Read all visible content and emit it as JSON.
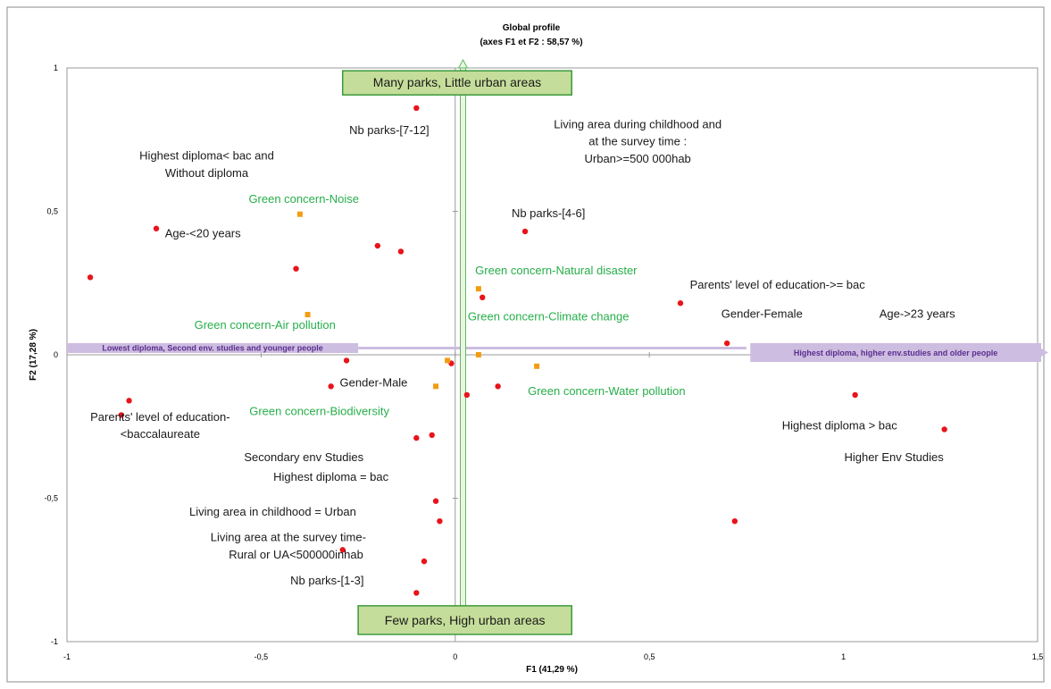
{
  "chart_data": {
    "type": "scatter",
    "title": "Global profile",
    "subtitle": "(axes F1 et F2 : 58,57 %)",
    "xlabel": "F1 (41,29 %)",
    "ylabel": "F2 (17,28 %)",
    "xlim": [
      -1,
      1.5
    ],
    "ylim": [
      -1,
      1
    ],
    "x_ticks": [
      -1,
      -0.5,
      0,
      0.5,
      1,
      1.5
    ],
    "x_tick_labels": [
      "-1",
      "-0,5",
      "0",
      "0,5",
      "1",
      "1,5"
    ],
    "y_ticks": [
      -1,
      -0.5,
      0,
      0.5,
      1
    ],
    "y_tick_labels": [
      "-1",
      "-0,5",
      "0",
      "0,5",
      "1"
    ],
    "grid": false,
    "colors": {
      "red_points": "#e8141b",
      "orange_points": "#f39c12",
      "green_text": "#27ae4a",
      "purple_band": "#cdbde0",
      "purple_text": "#5b2d8e",
      "green_box": "#c5dd9a",
      "green_box_border": "#3c9a3c"
    },
    "series": [
      {
        "marker": "circle",
        "color": "#e8141b",
        "points": [
          {
            "x": -0.1,
            "y": 0.86
          },
          {
            "x": -0.77,
            "y": 0.44
          },
          {
            "x": -0.94,
            "y": 0.27
          },
          {
            "x": -0.41,
            "y": 0.3
          },
          {
            "x": -0.2,
            "y": 0.38
          },
          {
            "x": -0.14,
            "y": 0.36
          },
          {
            "x": 0.18,
            "y": 0.43
          },
          {
            "x": 0.07,
            "y": 0.2
          },
          {
            "x": 0.58,
            "y": 0.18
          },
          {
            "x": 0.7,
            "y": 0.04
          },
          {
            "x": -0.28,
            "y": -0.02
          },
          {
            "x": -0.32,
            "y": -0.11
          },
          {
            "x": -0.84,
            "y": -0.16
          },
          {
            "x": -0.86,
            "y": -0.21
          },
          {
            "x": -0.01,
            "y": -0.03
          },
          {
            "x": 0.03,
            "y": -0.14
          },
          {
            "x": 0.11,
            "y": -0.11
          },
          {
            "x": -0.1,
            "y": -0.29
          },
          {
            "x": -0.06,
            "y": -0.28
          },
          {
            "x": -0.05,
            "y": -0.51
          },
          {
            "x": -0.04,
            "y": -0.58
          },
          {
            "x": -0.29,
            "y": -0.68
          },
          {
            "x": -0.08,
            "y": -0.72
          },
          {
            "x": -0.1,
            "y": -0.83
          },
          {
            "x": 1.03,
            "y": -0.14
          },
          {
            "x": 1.26,
            "y": -0.26
          },
          {
            "x": 0.72,
            "y": -0.58
          }
        ]
      },
      {
        "marker": "square",
        "color": "#f39c12",
        "points": [
          {
            "x": -0.4,
            "y": 0.49
          },
          {
            "x": -0.38,
            "y": 0.14
          },
          {
            "x": 0.06,
            "y": 0.23
          },
          {
            "x": 0.06,
            "y": 0.0
          },
          {
            "x": -0.02,
            "y": -0.02
          },
          {
            "x": -0.05,
            "y": -0.11
          },
          {
            "x": 0.21,
            "y": -0.04
          }
        ]
      }
    ],
    "annotations": [
      {
        "text": "Nb parks-[7-12]",
        "x": -0.17,
        "y": 0.77,
        "color": "black"
      },
      {
        "text": "Highest diploma< bac and",
        "x": -0.64,
        "y": 0.68,
        "color": "black"
      },
      {
        "text": "Without diploma",
        "x": -0.64,
        "y": 0.62,
        "color": "black"
      },
      {
        "text": "Living area during childhood and",
        "x": 0.47,
        "y": 0.79,
        "color": "black"
      },
      {
        "text": "at the survey time :",
        "x": 0.47,
        "y": 0.73,
        "color": "black"
      },
      {
        "text": "Urban>=500 000hab",
        "x": 0.47,
        "y": 0.67,
        "color": "black"
      },
      {
        "text": "Green concern-Noise",
        "x": -0.39,
        "y": 0.53,
        "color": "green"
      },
      {
        "text": "Nb parks-[4-6]",
        "x": 0.24,
        "y": 0.48,
        "color": "black"
      },
      {
        "text": "Age-<20 years",
        "x": -0.65,
        "y": 0.41,
        "color": "black"
      },
      {
        "text": "Green concern-Natural disaster",
        "x": 0.26,
        "y": 0.28,
        "color": "green"
      },
      {
        "text": "Parents' level of education->= bac",
        "x": 0.83,
        "y": 0.23,
        "color": "black"
      },
      {
        "text": "Green concern-Climate change",
        "x": 0.24,
        "y": 0.12,
        "color": "green"
      },
      {
        "text": "Gender-Female",
        "x": 0.79,
        "y": 0.13,
        "color": "black"
      },
      {
        "text": "Age->23 years",
        "x": 1.19,
        "y": 0.13,
        "color": "black"
      },
      {
        "text": "Green concern-Air pollution",
        "x": -0.49,
        "y": 0.09,
        "color": "green"
      },
      {
        "text": "Gender-Male",
        "x": -0.21,
        "y": -0.11,
        "color": "black"
      },
      {
        "text": "Green concern-Water pollution",
        "x": 0.39,
        "y": -0.14,
        "color": "green"
      },
      {
        "text": "Green concern-Biodiversity",
        "x": -0.35,
        "y": -0.21,
        "color": "green"
      },
      {
        "text": "Parents' level of education-",
        "x": -0.76,
        "y": -0.23,
        "color": "black"
      },
      {
        "text": "<baccalaureate",
        "x": -0.76,
        "y": -0.29,
        "color": "black"
      },
      {
        "text": "Highest diploma > bac",
        "x": 0.99,
        "y": -0.26,
        "color": "black"
      },
      {
        "text": "Secondary env Studies",
        "x": -0.39,
        "y": -0.37,
        "color": "black"
      },
      {
        "text": "Higher Env Studies",
        "x": 1.13,
        "y": -0.37,
        "color": "black"
      },
      {
        "text": "Highest diploma = bac",
        "x": -0.32,
        "y": -0.44,
        "color": "black"
      },
      {
        "text": "Living area in childhood = Urban",
        "x": -0.47,
        "y": -0.56,
        "color": "black"
      },
      {
        "text": "Living area at the survey time-",
        "x": -0.43,
        "y": -0.65,
        "color": "black"
      },
      {
        "text": "Rural or UA<500000inhab",
        "x": -0.41,
        "y": -0.71,
        "color": "black"
      },
      {
        "text": "Nb parks-[1-3]",
        "x": -0.33,
        "y": -0.8,
        "color": "black"
      }
    ],
    "boxes": {
      "top": "Many parks, Little urban areas",
      "bottom": "Few parks, High urban areas",
      "left_band": "Lowest diploma, Second env. studies and younger people",
      "right_band": "Highest diploma, higher env.studies and older people"
    }
  }
}
